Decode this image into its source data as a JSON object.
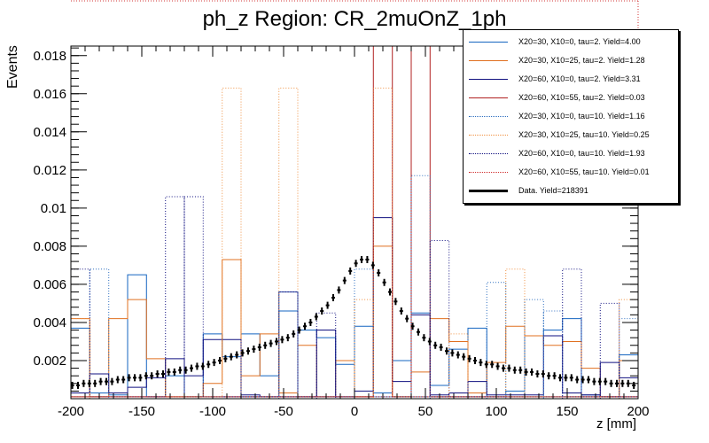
{
  "title": "ph_z Region: CR_2muOnZ_1ph",
  "chart_data": {
    "type": "histogram",
    "title": "ph_z Region: CR_2muOnZ_1ph",
    "xlabel": "z [mm]",
    "ylabel": "Events",
    "xlim": [
      -200,
      200
    ],
    "ylim": [
      0,
      0.0185
    ],
    "x_ticks": [
      -200,
      -150,
      -100,
      -50,
      0,
      50,
      100,
      150,
      200
    ],
    "y_ticks": [
      0.002,
      0.004,
      0.006,
      0.008,
      0.01,
      0.012,
      0.014,
      0.016,
      0.018
    ],
    "y_tick_labels": [
      "0.002",
      "0.004",
      "0.006",
      "0.008",
      "0.01",
      "0.012",
      "0.014",
      "0.016",
      "0.018"
    ],
    "bin_edges": [
      -200,
      -186.7,
      -173.3,
      -160,
      -146.7,
      -133.3,
      -120,
      -106.7,
      -93.3,
      -80,
      -66.7,
      -53.3,
      -40,
      -26.7,
      -13.3,
      0,
      13.3,
      26.7,
      40,
      53.3,
      66.7,
      80,
      93.3,
      106.7,
      120,
      133.3,
      146.7,
      160,
      173.3,
      186.7,
      200
    ],
    "series": [
      {
        "name": "X20=30, X10=0, tau=2. Yield=4.00",
        "color": "#1565c0",
        "style": "solid",
        "values": [
          0.0037,
          0.0003,
          0.0002,
          0.0065,
          0.0001,
          0.0012,
          0.0001,
          0.0034,
          0.0022,
          0.0034,
          0.0012,
          0.0046,
          0.0036,
          0.0032,
          0.0018,
          0.0038,
          0.0003,
          0.002,
          0.0045,
          0.0007,
          0.0026,
          0.0037,
          0.0001,
          0.0004,
          0.0033,
          0.0036,
          0.0042,
          0.0002,
          0.0001,
          0.0023
        ]
      },
      {
        "name": "X20=30, X10=25, tau=2. Yield=1.28",
        "color": "#e07020",
        "style": "solid",
        "values": [
          0.0042,
          0.0001,
          0.0042,
          0.0052,
          0.0021,
          0.0001,
          0.0001,
          0.0008,
          0.0073,
          0.0012,
          0.0034,
          0.0003,
          0.0028,
          0.0001,
          0.002,
          0.0001,
          0.008,
          0.0001,
          0.0014,
          0.0042,
          0.003,
          0.0003,
          0.0019,
          0.0038,
          0.0033,
          0.0028,
          0.003,
          0.0016,
          0.0001,
          0.002
        ]
      },
      {
        "name": "X20=60, X10=0, tau=2. Yield=3.31",
        "color": "#101080",
        "style": "solid",
        "values": [
          0.0003,
          0.0013,
          0.0003,
          0.0006,
          0.0011,
          0.0021,
          0.0012,
          0.0031,
          0.0031,
          0.0002,
          0.0001,
          0.0056,
          0.0001,
          0.0036,
          0.0001,
          0.0004,
          0.0095,
          0.0009,
          0.0044,
          0.0002,
          0.0003,
          0.0009,
          0.0002,
          0.0002,
          0.0002,
          0.0033,
          0.0003,
          0.0002,
          0.0019,
          0.0011
        ]
      },
      {
        "name": "X20=60, X10=55, tau=2. Yield=0.03",
        "color": "#b02020",
        "style": "solid",
        "values": [
          0.0001,
          0.0001,
          0.0001,
          0.0001,
          0.0001,
          0.0001,
          0.0001,
          0.0001,
          0.0001,
          0.0001,
          0.0001,
          0.0001,
          0.0001,
          0.0001,
          0.0001,
          0.0001,
          0.0185,
          0.0001,
          0.0185,
          0.0001,
          0.0001,
          0.0001,
          0.0001,
          0.0001,
          0.0001,
          0.0001,
          0.0001,
          0.0001,
          0.0001,
          0.0001
        ]
      },
      {
        "name": "X20=30, X10=0, tau=10. Yield=1.16",
        "color": "#3070c0",
        "style": "dotted",
        "values": [
          0.0001,
          0.0001,
          0.0001,
          0.0001,
          0.0001,
          0.0001,
          0.0001,
          0.0001,
          0.0001,
          0.0001,
          0.0001,
          0.0001,
          0.0001,
          0.0001,
          0.0001,
          0.0068,
          0.0001,
          0.0001,
          0.0001,
          0.0001,
          0.0001,
          0.0001,
          0.0001,
          0.0001,
          0.0001,
          0.0001,
          0.0001,
          0.0001,
          0.0001,
          0.0001
        ]
      },
      {
        "name": "X20=30, X10=25, tau=10. Yield=0.25",
        "color": "#f09040",
        "style": "dotted",
        "values": [
          0.0001,
          0.0001,
          0.0001,
          0.0001,
          0.0001,
          0.0001,
          0.0001,
          0.0001,
          0.0163,
          0.0001,
          0.0001,
          0.0163,
          0.0001,
          0.0001,
          0.0001,
          0.0001,
          0.0163,
          0.0001,
          0.0001,
          0.0001,
          0.0001,
          0.0001,
          0.0001,
          0.0001,
          0.0001,
          0.0001,
          0.0001,
          0.0001,
          0.0001,
          0.0001
        ]
      },
      {
        "name": "X20=60, X10=0, tau=10. Yield=1.93",
        "color": "#101080",
        "style": "dotted",
        "values": [
          0.0068,
          0.0001,
          0.0001,
          0.0001,
          0.0001,
          0.0106,
          0.0001,
          0.0001,
          0.0001,
          0.0001,
          0.0001,
          0.0001,
          0.0001,
          0.0001,
          0.0001,
          0.0001,
          0.0001,
          0.0001,
          0.0001,
          0.0001,
          0.0001,
          0.0001,
          0.0001,
          0.0001,
          0.0001,
          0.0001,
          0.0001,
          0.0001,
          0.0001,
          0.0001
        ]
      },
      {
        "name": "X20=60, X10=55, tau=10. Yield=0.01",
        "color": "#d03030",
        "style": "dotted",
        "values": [
          0.0001,
          0.0001,
          0.0001,
          0.0001,
          0.0001,
          0.0001,
          0.0001,
          0.0001,
          0.0001,
          0.0001,
          0.0001,
          0.0001,
          0.0001,
          0.0001,
          0.0001,
          0.0001,
          0.0001,
          0.0001,
          0.0001,
          0.0001,
          0.0001,
          0.0001,
          0.0001,
          0.0001,
          0.0001,
          0.0001,
          0.0001,
          0.0001,
          0.0001,
          0.0001
        ]
      }
    ],
    "extra_dotted": [
      {
        "color": "#3070c0",
        "bins": [
          [
            -186.7,
            -173.3,
            0.0068
          ],
          [
            -53.3,
            -40,
            0.0056
          ],
          [
            40,
            53.3,
            0.0117
          ],
          [
            93.3,
            106.7,
            0.0061
          ],
          [
            120,
            133.3,
            0.0052
          ],
          [
            133.3,
            146.7,
            0.0046
          ],
          [
            186.7,
            200,
            0.0042
          ]
        ]
      },
      {
        "color": "#101080",
        "bins": [
          [
            -120,
            -106.7,
            0.0106
          ],
          [
            -26.7,
            -13.3,
            0.0045
          ],
          [
            53.3,
            66.7,
            0.0083
          ],
          [
            146.7,
            160,
            0.0068
          ],
          [
            173.3,
            186.7,
            0.005
          ]
        ]
      },
      {
        "color": "#f09040",
        "bins": [
          [
            -200,
            -186.7,
            0.0042
          ],
          [
            0,
            13.3,
            0.0052
          ],
          [
            66.7,
            80,
            0.0034
          ],
          [
            106.7,
            120,
            0.0068
          ],
          [
            186.7,
            200,
            0.0052
          ]
        ]
      }
    ],
    "data": {
      "name": "Data. Yield=218391",
      "color": "#000000",
      "x": [
        -199,
        -195,
        -191,
        -187,
        -183,
        -179,
        -175,
        -171,
        -167,
        -163,
        -159,
        -155,
        -151,
        -147,
        -143,
        -139,
        -135,
        -131,
        -127,
        -123,
        -119,
        -115,
        -111,
        -107,
        -103,
        -99,
        -95,
        -91,
        -87,
        -83,
        -79,
        -75,
        -71,
        -67,
        -63,
        -59,
        -55,
        -51,
        -47,
        -43,
        -39,
        -35,
        -31,
        -27,
        -23,
        -19,
        -15,
        -11,
        -7,
        -3,
        1,
        5,
        9,
        13,
        17,
        21,
        25,
        29,
        33,
        37,
        41,
        45,
        49,
        53,
        57,
        61,
        65,
        69,
        73,
        77,
        81,
        85,
        89,
        93,
        97,
        101,
        105,
        109,
        113,
        117,
        121,
        125,
        129,
        133,
        137,
        141,
        145,
        149,
        153,
        157,
        161,
        165,
        169,
        173,
        177,
        181,
        185,
        189,
        193,
        197
      ],
      "y": [
        0.0007,
        0.0007,
        0.0008,
        0.0008,
        0.0008,
        0.0009,
        0.0009,
        0.0009,
        0.001,
        0.001,
        0.0011,
        0.0011,
        0.0011,
        0.0012,
        0.0012,
        0.0013,
        0.0013,
        0.0014,
        0.0014,
        0.0015,
        0.0015,
        0.0016,
        0.0017,
        0.0017,
        0.0018,
        0.0019,
        0.002,
        0.0021,
        0.0022,
        0.0023,
        0.0024,
        0.0025,
        0.0026,
        0.0027,
        0.0028,
        0.0029,
        0.003,
        0.0031,
        0.0032,
        0.0034,
        0.0036,
        0.0038,
        0.004,
        0.0043,
        0.0046,
        0.0049,
        0.0053,
        0.0057,
        0.0062,
        0.0067,
        0.0071,
        0.0073,
        0.0073,
        0.007,
        0.0066,
        0.0061,
        0.0056,
        0.0051,
        0.0046,
        0.0042,
        0.0038,
        0.0035,
        0.0032,
        0.003,
        0.0028,
        0.0027,
        0.0025,
        0.0024,
        0.0023,
        0.0022,
        0.0021,
        0.002,
        0.0019,
        0.0018,
        0.0018,
        0.0017,
        0.0016,
        0.0016,
        0.0015,
        0.0015,
        0.0014,
        0.0014,
        0.0013,
        0.0013,
        0.0012,
        0.0012,
        0.0011,
        0.0011,
        0.0011,
        0.001,
        0.001,
        0.001,
        0.0009,
        0.0009,
        0.0009,
        0.0008,
        0.0008,
        0.0008,
        0.0008,
        0.0007
      ]
    },
    "legend_position": "top-right"
  }
}
